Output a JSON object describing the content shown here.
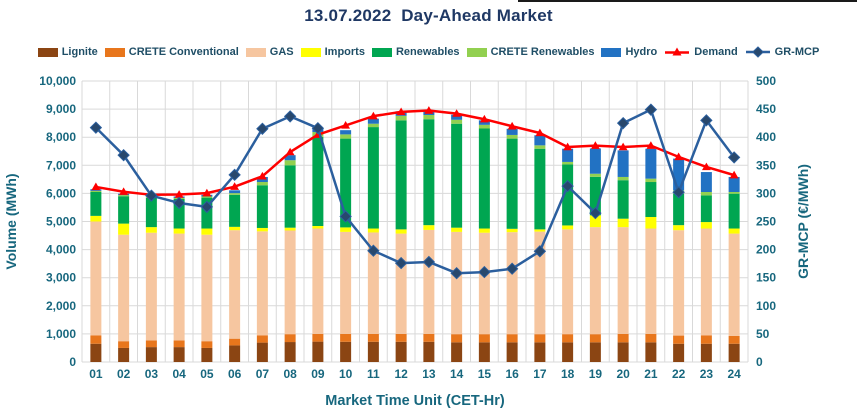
{
  "chart_data": {
    "type": "bar",
    "subtype": "stacked-bar-with-lines",
    "title": "13.07.2022  Day-Ahead Market",
    "x_axis": {
      "title": "Market Time Unit (CET-Hr)",
      "labels": [
        "01",
        "02",
        "03",
        "04",
        "05",
        "06",
        "07",
        "08",
        "09",
        "10",
        "11",
        "12",
        "13",
        "14",
        "15",
        "16",
        "17",
        "18",
        "19",
        "20",
        "21",
        "22",
        "23",
        "24"
      ]
    },
    "y_axis_left": {
      "title": "Volume (MWh)",
      "min": 0,
      "max": 10000,
      "step": 1000,
      "tick_labels": [
        "0",
        "1,000",
        "2,000",
        "3,000",
        "4,000",
        "5,000",
        "6,000",
        "7,000",
        "8,000",
        "9,000",
        "10,000"
      ]
    },
    "y_axis_right": {
      "title": "GR-MCP (€/MWh)",
      "min": 0,
      "max": 500,
      "step": 50,
      "tick_labels": [
        "0",
        "50",
        "100",
        "150",
        "200",
        "250",
        "300",
        "350",
        "400",
        "450",
        "500"
      ]
    },
    "grid": "horizontal-and-vertical",
    "legend_position": "top",
    "stack_series": [
      {
        "name": "lignite",
        "label": "Lignite",
        "color": "#8B4513",
        "values": [
          650,
          500,
          530,
          530,
          500,
          590,
          690,
          710,
          725,
          720,
          720,
          720,
          720,
          700,
          700,
          700,
          700,
          700,
          700,
          700,
          700,
          650,
          650,
          650
        ]
      },
      {
        "name": "crete-conventional",
        "label": "CRETE Conventional",
        "color": "#E8761C",
        "values": [
          300,
          240,
          240,
          240,
          240,
          240,
          260,
          280,
          275,
          280,
          280,
          280,
          280,
          290,
          290,
          290,
          290,
          290,
          290,
          300,
          300,
          290,
          300,
          280
        ]
      },
      {
        "name": "gas",
        "label": "GAS",
        "color": "#F6C6A0",
        "values": [
          4050,
          3790,
          3830,
          3800,
          3790,
          3860,
          3700,
          3690,
          3750,
          3630,
          3610,
          3570,
          3700,
          3640,
          3610,
          3630,
          3650,
          3730,
          3810,
          3800,
          3750,
          3750,
          3800,
          3640
        ]
      },
      {
        "name": "imports",
        "label": "Imports",
        "color": "#FFFF00",
        "values": [
          200,
          395,
          200,
          180,
          220,
          120,
          120,
          100,
          90,
          160,
          140,
          150,
          170,
          150,
          150,
          120,
          80,
          140,
          420,
          300,
          410,
          180,
          230,
          180
        ]
      },
      {
        "name": "renewables",
        "label": "Renewables",
        "color": "#00A651",
        "values": [
          850,
          975,
          1040,
          1050,
          1100,
          1140,
          1520,
          2220,
          3170,
          3160,
          3610,
          3880,
          3770,
          3700,
          3560,
          3210,
          2870,
          2170,
          1370,
          1370,
          1245,
          1120,
          950,
          1240
        ]
      },
      {
        "name": "crete-renewables",
        "label": "CRETE Renewables",
        "color": "#92D050",
        "values": [
          40,
          40,
          40,
          40,
          40,
          60,
          115,
          180,
          175,
          150,
          120,
          160,
          150,
          140,
          130,
          130,
          120,
          90,
          110,
          115,
          120,
          120,
          120,
          60
        ]
      },
      {
        "name": "hydro",
        "label": "Hydro",
        "color": "#2272C3",
        "values": [
          60,
          50,
          50,
          50,
          60,
          100,
          180,
          180,
          125,
          150,
          180,
          160,
          130,
          180,
          160,
          220,
          360,
          470,
          900,
          945,
          1065,
          1130,
          710,
          535
        ]
      }
    ],
    "line_series": [
      {
        "name": "demand",
        "label": "Demand",
        "axis": "left",
        "color": "#FE0000",
        "marker": "triangle",
        "marker_color": "#FE0000",
        "values": [
          6230,
          6060,
          5950,
          5960,
          6010,
          6240,
          6610,
          7470,
          8090,
          8420,
          8750,
          8900,
          8950,
          8840,
          8640,
          8390,
          8150,
          7650,
          7700,
          7650,
          7700,
          7300,
          6940,
          6650
        ]
      },
      {
        "name": "gr-mcp",
        "label": "GR-MCP",
        "axis": "right",
        "color": "#2B5F9E",
        "marker": "diamond",
        "marker_color": "#28486D",
        "values": [
          417,
          368,
          296,
          283,
          276,
          333,
          415,
          437,
          416,
          259,
          198,
          176,
          178,
          158,
          160,
          166,
          197,
          313,
          265,
          425,
          449,
          302,
          430,
          364
        ]
      }
    ]
  },
  "colors": {
    "title_text": "#1F3864",
    "axis_text": "#17677E",
    "legend_text": "#1F4E66",
    "gridline": "#D9D9D9"
  }
}
